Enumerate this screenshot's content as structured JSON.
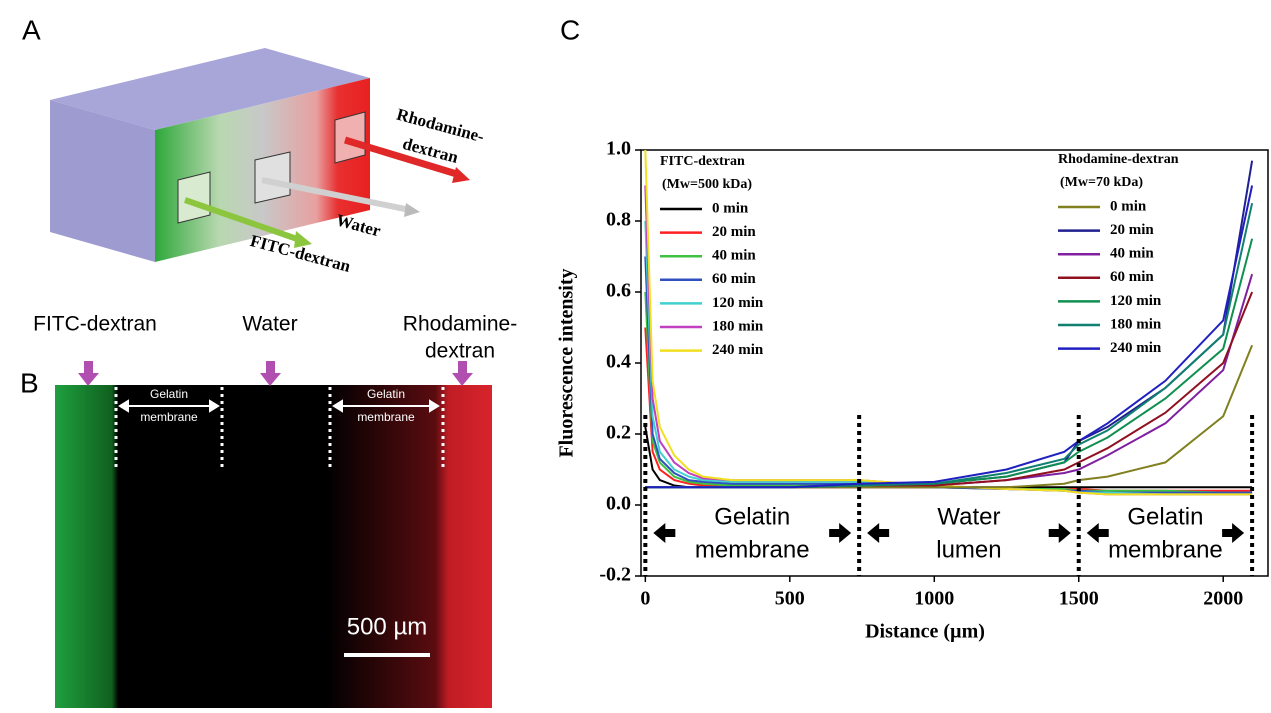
{
  "panel_a": {
    "label": "A",
    "rhodamine": [
      "Rhodamine-",
      "dextran"
    ],
    "water": "Water",
    "fitc": "FITC-dextran"
  },
  "panel_b": {
    "label": "B",
    "fitc": "FITC-dextran",
    "water": "Water",
    "rhodamine": [
      "Rhodamine-",
      "dextran"
    ],
    "membrane_left": [
      "Gelatin",
      "membrane"
    ],
    "membrane_right": [
      "Gelatin",
      "membrane"
    ],
    "scale_bar": "500 µm"
  },
  "panel_c": {
    "label": "C"
  },
  "chart_data": {
    "type": "line",
    "x_label": "Distance (µm)",
    "y_label": "Fluorescence intensity",
    "xlim": [
      -15,
      2155
    ],
    "xticks": [
      0,
      500,
      1000,
      1500,
      2000
    ],
    "ylim": [
      -0.2,
      1.0
    ],
    "yticks": [
      -0.2,
      {
        "value": 0.0,
        "label": "0.0"
      },
      0.2,
      0.4,
      0.6,
      0.8,
      {
        "value": 1.0,
        "label": "1.0"
      }
    ],
    "x": [
      0,
      25,
      50,
      100,
      150,
      200,
      300,
      500,
      740,
      1000,
      1250,
      1450,
      1500,
      1600,
      1800,
      2000,
      2100
    ],
    "boundaries": [
      0,
      740,
      1500,
      2100
    ],
    "regions": [
      [
        "Gelatin",
        "membrane"
      ],
      [
        "Water",
        "lumen"
      ],
      [
        "Gelatin",
        "membrane"
      ]
    ],
    "series_groups": [
      {
        "title": "FITC-dextran",
        "subtitle": "(Mw=500 kDa)",
        "series": [
          {
            "name": "0 min",
            "color": "#000000",
            "values": [
              0.22,
              0.1,
              0.07,
              0.055,
              0.05,
              0.05,
              0.05,
              0.05,
              0.05,
              0.05,
              0.05,
              0.05,
              0.05,
              0.05,
              0.05,
              0.05,
              0.05
            ]
          },
          {
            "name": "20 min",
            "color": "#ff2020",
            "values": [
              0.5,
              0.15,
              0.1,
              0.07,
              0.06,
              0.055,
              0.05,
              0.05,
              0.05,
              0.05,
              0.045,
              0.045,
              0.045,
              0.04,
              0.04,
              0.04,
              0.04
            ]
          },
          {
            "name": "40 min",
            "color": "#40c040",
            "values": [
              0.6,
              0.18,
              0.12,
              0.08,
              0.065,
              0.06,
              0.055,
              0.055,
              0.055,
              0.05,
              0.045,
              0.045,
              0.04,
              0.04,
              0.04,
              0.035,
              0.035
            ]
          },
          {
            "name": "60 min",
            "color": "#3050c0",
            "values": [
              0.7,
              0.2,
              0.13,
              0.09,
              0.07,
              0.065,
              0.06,
              0.06,
              0.06,
              0.05,
              0.045,
              0.04,
              0.04,
              0.035,
              0.035,
              0.035,
              0.035
            ]
          },
          {
            "name": "120 min",
            "color": "#40d0d0",
            "values": [
              0.8,
              0.25,
              0.15,
              0.1,
              0.08,
              0.07,
              0.065,
              0.065,
              0.065,
              0.055,
              0.045,
              0.04,
              0.035,
              0.035,
              0.03,
              0.03,
              0.03
            ]
          },
          {
            "name": "180 min",
            "color": "#c040c0",
            "values": [
              0.9,
              0.3,
              0.18,
              0.12,
              0.09,
              0.075,
              0.07,
              0.07,
              0.07,
              0.055,
              0.045,
              0.04,
              0.035,
              0.03,
              0.03,
              0.03,
              0.03
            ]
          },
          {
            "name": "240 min",
            "color": "#f0e020",
            "values": [
              1.0,
              0.35,
              0.22,
              0.14,
              0.1,
              0.08,
              0.07,
              0.07,
              0.07,
              0.055,
              0.045,
              0.04,
              0.035,
              0.03,
              0.03,
              0.03,
              0.03
            ]
          }
        ]
      },
      {
        "title": "Rhodamine-dextran",
        "subtitle": "(Mw=70 kDa)",
        "series": [
          {
            "name": "0 min",
            "color": "#808020",
            "values": [
              0.05,
              0.05,
              0.05,
              0.05,
              0.05,
              0.05,
              0.05,
              0.05,
              0.05,
              0.05,
              0.05,
              0.06,
              0.07,
              0.08,
              0.12,
              0.25,
              0.45
            ]
          },
          {
            "name": "20 min",
            "color": "#202090",
            "values": [
              0.05,
              0.05,
              0.05,
              0.05,
              0.05,
              0.05,
              0.05,
              0.05,
              0.055,
              0.06,
              0.08,
              0.12,
              0.18,
              0.22,
              0.33,
              0.48,
              0.97
            ]
          },
          {
            "name": "40 min",
            "color": "#8020a0",
            "values": [
              0.05,
              0.05,
              0.05,
              0.05,
              0.05,
              0.05,
              0.05,
              0.05,
              0.055,
              0.055,
              0.07,
              0.09,
              0.1,
              0.14,
              0.23,
              0.38,
              0.65
            ]
          },
          {
            "name": "60 min",
            "color": "#901020",
            "values": [
              0.05,
              0.05,
              0.05,
              0.05,
              0.05,
              0.05,
              0.05,
              0.05,
              0.055,
              0.055,
              0.07,
              0.1,
              0.12,
              0.16,
              0.26,
              0.4,
              0.6
            ]
          },
          {
            "name": "120 min",
            "color": "#109050",
            "values": [
              0.05,
              0.05,
              0.05,
              0.05,
              0.05,
              0.05,
              0.05,
              0.05,
              0.055,
              0.06,
              0.08,
              0.12,
              0.15,
              0.19,
              0.3,
              0.44,
              0.75
            ]
          },
          {
            "name": "180 min",
            "color": "#108070",
            "values": [
              0.05,
              0.05,
              0.05,
              0.05,
              0.05,
              0.05,
              0.05,
              0.05,
              0.055,
              0.06,
              0.09,
              0.13,
              0.17,
              0.21,
              0.33,
              0.48,
              0.85
            ]
          },
          {
            "name": "240 min",
            "color": "#2020c0",
            "values": [
              0.05,
              0.05,
              0.05,
              0.05,
              0.05,
              0.05,
              0.05,
              0.05,
              0.06,
              0.065,
              0.1,
              0.15,
              0.18,
              0.23,
              0.35,
              0.52,
              0.9
            ]
          }
        ]
      }
    ]
  }
}
